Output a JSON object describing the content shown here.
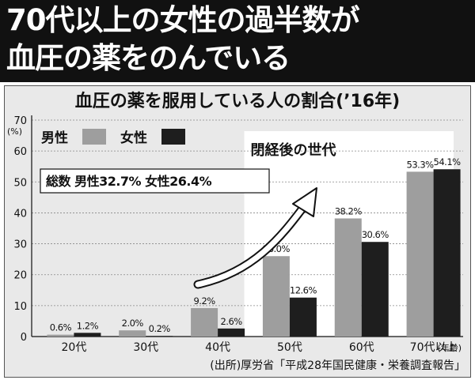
{
  "header": {
    "line1": "70代以上の女性の過半数が",
    "line2": "血圧の薬をのんでいる"
  },
  "colors": {
    "male": "#9e9e9e",
    "female": "#1e1e1e",
    "background": "#e9e9e9",
    "highlight": "#ffffff"
  },
  "chart_data": {
    "type": "bar",
    "title": "血圧の薬を服用している人の割合(’16年)",
    "ylabel": "(%)",
    "xunit": "(年齢)",
    "ylim": [
      0,
      70
    ],
    "yticks": [
      0,
      10,
      20,
      30,
      40,
      50,
      60,
      70
    ],
    "categories": [
      "20代",
      "30代",
      "40代",
      "50代",
      "60代",
      "70代以上"
    ],
    "series": [
      {
        "name": "男性",
        "values": [
          0.6,
          2.0,
          9.2,
          26.0,
          38.2,
          53.3
        ],
        "labels": [
          "0.6%",
          "2.0%",
          "9.2%",
          "26.0%",
          "38.2%",
          "53.3%"
        ]
      },
      {
        "name": "女性",
        "values": [
          1.2,
          0.2,
          2.6,
          12.6,
          30.6,
          54.1
        ],
        "labels": [
          "1.2%",
          "0.2%",
          "2.6%",
          "12.6%",
          "30.6%",
          "54.1%"
        ]
      }
    ],
    "legend_position": "top-left",
    "highlight_label": "閉経後の世代",
    "total_label": "総数 男性32.7% 女性26.4%"
  },
  "source": "(出所)厚労省「平成28年国民健康・栄養調査報告」"
}
